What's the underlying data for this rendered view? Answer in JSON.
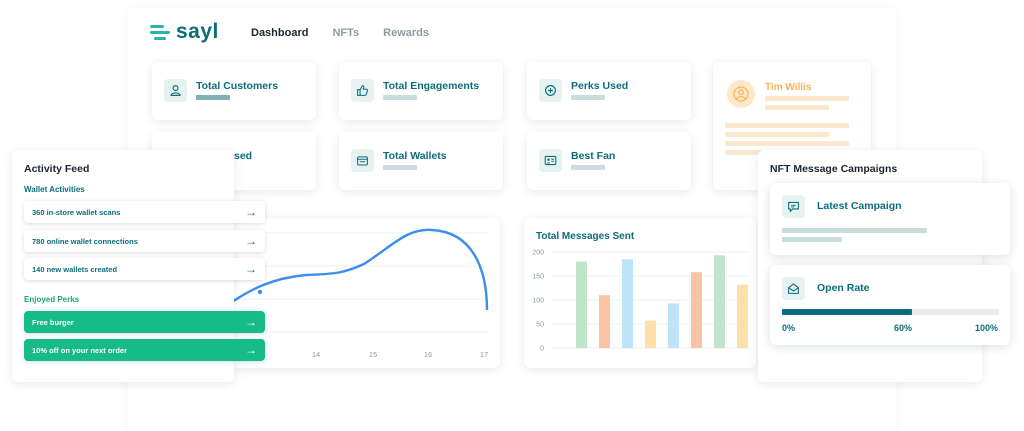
{
  "brand": {
    "name": "sayl"
  },
  "nav": {
    "items": [
      "Dashboard",
      "NFTs",
      "Rewards"
    ],
    "active": 0
  },
  "stats": [
    {
      "label": "Total Customers",
      "icon": "user-icon"
    },
    {
      "label": "Total Engagements",
      "icon": "thumbs-up-icon"
    },
    {
      "label": "Perks Used",
      "icon": "plus-circle-icon"
    },
    {
      "label": "Total Wallets",
      "icon": "wallet-icon"
    },
    {
      "label": "Best Fan",
      "icon": "id-card-icon"
    },
    {
      "label": "sed",
      "icon": ""
    }
  ],
  "profile": {
    "name": "Tim Willis"
  },
  "activity": {
    "title": "Activity Feed",
    "wallet_label": "Wallet Activities",
    "wallet_items": [
      "360 in-store wallet scans",
      "780 online wallet connections",
      "140 new wallets created"
    ],
    "perks_label": "Enjoyed Perks",
    "perk_items": [
      "Free burger",
      "10% off on your next order"
    ],
    "arrow": "→"
  },
  "line_chart": {
    "x_ticks": [
      "14",
      "15",
      "16",
      "17"
    ]
  },
  "chart_data": {
    "type": "bar",
    "title": "Total Messages Sent",
    "ylim": [
      0,
      200
    ],
    "y_ticks": [
      "200",
      "150",
      "100",
      "50",
      "0"
    ],
    "values": [
      180,
      110,
      185,
      57,
      93,
      158,
      193,
      132
    ],
    "colors": [
      "#bfe3cb",
      "#f9c4a5",
      "#bde4f7",
      "#fde0a8",
      "#bde4f7",
      "#f9c4a5",
      "#bfe3cb",
      "#fde0a8"
    ],
    "grid": true
  },
  "nft": {
    "title": "NFT Message Campaigns",
    "latest_label": "Latest Campaign",
    "open_rate_label": "Open Rate",
    "open_rate_value": 0.6,
    "ticks": [
      "0%",
      "60%",
      "100%"
    ]
  },
  "colors": {
    "brand": "#0d6d7b",
    "accent_green": "#16bb87",
    "line": "#3b8def"
  }
}
